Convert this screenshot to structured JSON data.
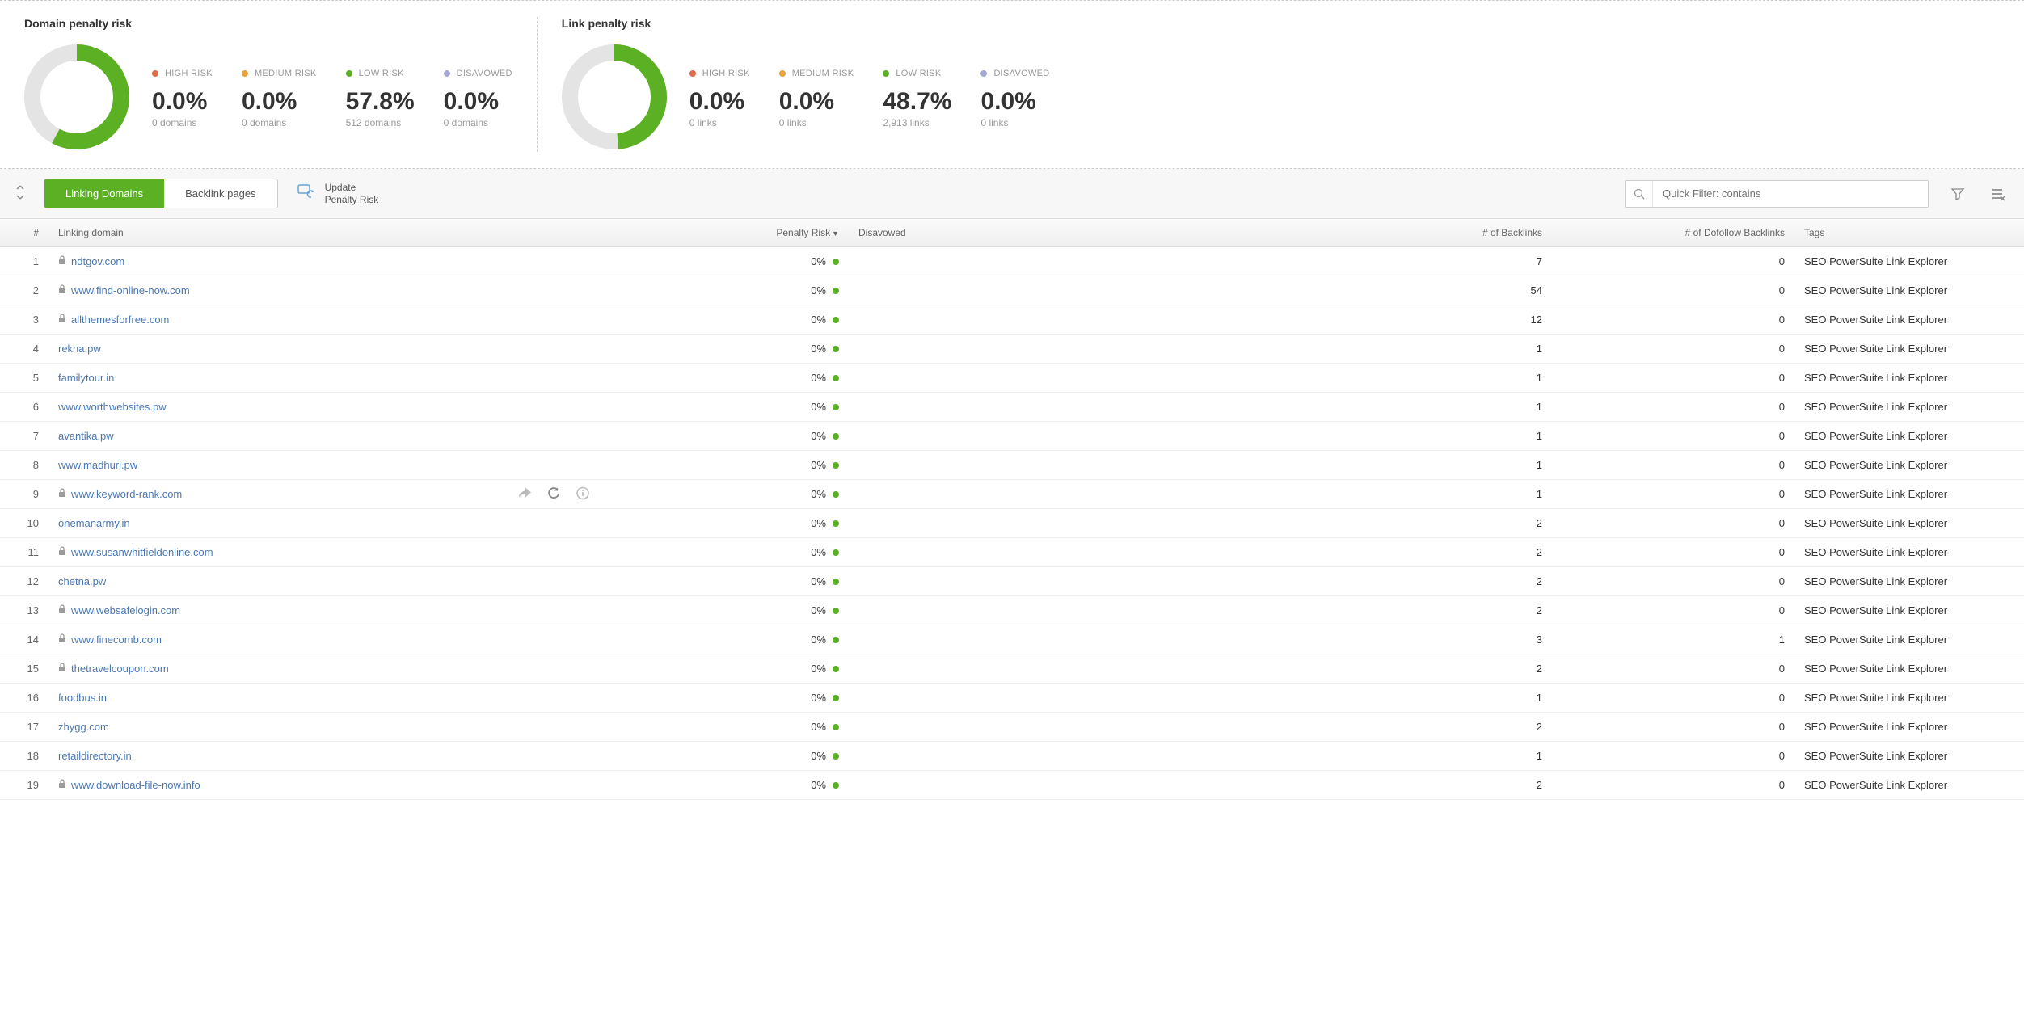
{
  "colors": {
    "high_risk": "#e06c4a",
    "medium_risk": "#e8a33d",
    "low_risk": "#5cb023",
    "disavowed": "#a5a9d6",
    "donut_bg": "#e4e4e4",
    "tab_active_bg": "#5cb023",
    "link": "#4a78b5"
  },
  "panels": [
    {
      "title": "Domain penalty risk",
      "donut": {
        "low_pct": 57.8,
        "size": 130,
        "stroke": 20
      },
      "stats": [
        {
          "legend": "HIGH RISK",
          "color_key": "high_risk",
          "pct": "0.0%",
          "sub": "0 domains"
        },
        {
          "legend": "MEDIUM RISK",
          "color_key": "medium_risk",
          "pct": "0.0%",
          "sub": "0 domains"
        },
        {
          "legend": "LOW RISK",
          "color_key": "low_risk",
          "pct": "57.8%",
          "sub": "512 domains"
        },
        {
          "legend": "DISAVOWED",
          "color_key": "disavowed",
          "pct": "0.0%",
          "sub": "0 domains"
        }
      ]
    },
    {
      "title": "Link penalty risk",
      "donut": {
        "low_pct": 48.7,
        "size": 130,
        "stroke": 20
      },
      "stats": [
        {
          "legend": "HIGH RISK",
          "color_key": "high_risk",
          "pct": "0.0%",
          "sub": "0 links"
        },
        {
          "legend": "MEDIUM RISK",
          "color_key": "medium_risk",
          "pct": "0.0%",
          "sub": "0 links"
        },
        {
          "legend": "LOW RISK",
          "color_key": "low_risk",
          "pct": "48.7%",
          "sub": "2,913 links"
        },
        {
          "legend": "DISAVOWED",
          "color_key": "disavowed",
          "pct": "0.0%",
          "sub": "0 links"
        }
      ]
    }
  ],
  "toolbar": {
    "tabs": [
      "Linking Domains",
      "Backlink pages"
    ],
    "active_tab": 0,
    "update_line1": "Update",
    "update_line2": "Penalty Risk",
    "search_placeholder": "Quick Filter: contains"
  },
  "columns": {
    "num": "#",
    "domain": "Linking domain",
    "risk": "Penalty Risk",
    "disavow": "Disavowed",
    "backlinks": "# of Backlinks",
    "dofollow": "# of Dofollow Backlinks",
    "tags": "Tags"
  },
  "rows": [
    {
      "n": 1,
      "lock": true,
      "domain": "ndtgov.com",
      "risk": "0%",
      "backlinks": 7,
      "dofollow": 0,
      "tags": "SEO PowerSuite Link Explorer"
    },
    {
      "n": 2,
      "lock": true,
      "domain": "www.find-online-now.com",
      "risk": "0%",
      "backlinks": 54,
      "dofollow": 0,
      "tags": "SEO PowerSuite Link Explorer"
    },
    {
      "n": 3,
      "lock": true,
      "domain": "allthemesforfree.com",
      "risk": "0%",
      "backlinks": 12,
      "dofollow": 0,
      "tags": "SEO PowerSuite Link Explorer"
    },
    {
      "n": 4,
      "lock": false,
      "domain": "rekha.pw",
      "risk": "0%",
      "backlinks": 1,
      "dofollow": 0,
      "tags": "SEO PowerSuite Link Explorer"
    },
    {
      "n": 5,
      "lock": false,
      "domain": "familytour.in",
      "risk": "0%",
      "backlinks": 1,
      "dofollow": 0,
      "tags": "SEO PowerSuite Link Explorer"
    },
    {
      "n": 6,
      "lock": false,
      "domain": "www.worthwebsites.pw",
      "risk": "0%",
      "backlinks": 1,
      "dofollow": 0,
      "tags": "SEO PowerSuite Link Explorer"
    },
    {
      "n": 7,
      "lock": false,
      "domain": "avantika.pw",
      "risk": "0%",
      "backlinks": 1,
      "dofollow": 0,
      "tags": "SEO PowerSuite Link Explorer"
    },
    {
      "n": 8,
      "lock": false,
      "domain": "www.madhuri.pw",
      "risk": "0%",
      "backlinks": 1,
      "dofollow": 0,
      "tags": "SEO PowerSuite Link Explorer"
    },
    {
      "n": 9,
      "lock": true,
      "domain": "www.keyword-rank.com",
      "risk": "0%",
      "backlinks": 1,
      "dofollow": 0,
      "tags": "SEO PowerSuite Link Explorer",
      "hovered": true
    },
    {
      "n": 10,
      "lock": false,
      "domain": "onemanarmy.in",
      "risk": "0%",
      "backlinks": 2,
      "dofollow": 0,
      "tags": "SEO PowerSuite Link Explorer"
    },
    {
      "n": 11,
      "lock": true,
      "domain": "www.susanwhitfieldonline.com",
      "risk": "0%",
      "backlinks": 2,
      "dofollow": 0,
      "tags": "SEO PowerSuite Link Explorer"
    },
    {
      "n": 12,
      "lock": false,
      "domain": "chetna.pw",
      "risk": "0%",
      "backlinks": 2,
      "dofollow": 0,
      "tags": "SEO PowerSuite Link Explorer"
    },
    {
      "n": 13,
      "lock": true,
      "domain": "www.websafelogin.com",
      "risk": "0%",
      "backlinks": 2,
      "dofollow": 0,
      "tags": "SEO PowerSuite Link Explorer"
    },
    {
      "n": 14,
      "lock": true,
      "domain": "www.finecomb.com",
      "risk": "0%",
      "backlinks": 3,
      "dofollow": 1,
      "tags": "SEO PowerSuite Link Explorer"
    },
    {
      "n": 15,
      "lock": true,
      "domain": "thetravelcoupon.com",
      "risk": "0%",
      "backlinks": 2,
      "dofollow": 0,
      "tags": "SEO PowerSuite Link Explorer"
    },
    {
      "n": 16,
      "lock": false,
      "domain": "foodbus.in",
      "risk": "0%",
      "backlinks": 1,
      "dofollow": 0,
      "tags": "SEO PowerSuite Link Explorer"
    },
    {
      "n": 17,
      "lock": false,
      "domain": "zhygg.com",
      "risk": "0%",
      "backlinks": 2,
      "dofollow": 0,
      "tags": "SEO PowerSuite Link Explorer"
    },
    {
      "n": 18,
      "lock": false,
      "domain": "retaildirectory.in",
      "risk": "0%",
      "backlinks": 1,
      "dofollow": 0,
      "tags": "SEO PowerSuite Link Explorer"
    },
    {
      "n": 19,
      "lock": true,
      "domain": "www.download-file-now.info",
      "risk": "0%",
      "backlinks": 2,
      "dofollow": 0,
      "tags": "SEO PowerSuite Link Explorer"
    }
  ]
}
